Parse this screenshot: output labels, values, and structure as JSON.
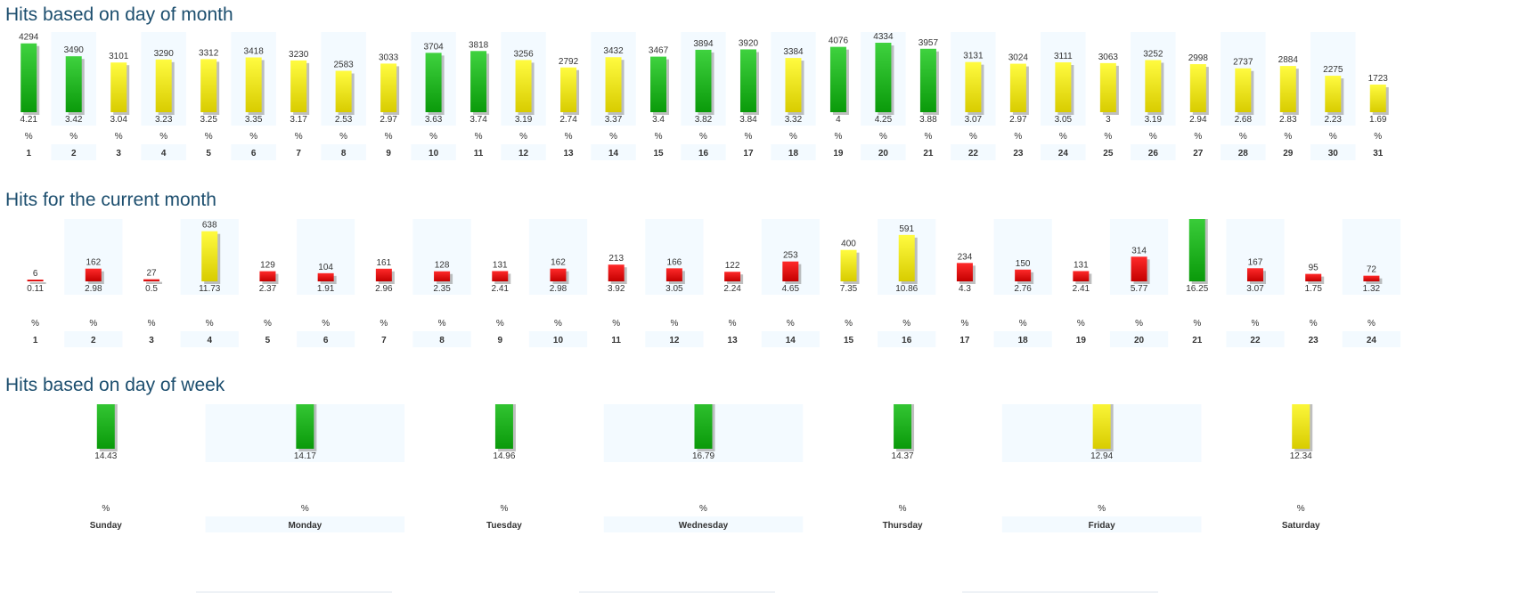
{
  "colors": {
    "green_top": "#3fd23f",
    "green_bottom": "#0a9a0a",
    "yellow_top": "#fffb40",
    "yellow_bottom": "#d8cc00",
    "red_top": "#ff2a2a",
    "red_bottom": "#c40000",
    "band": "#f3faff",
    "title": "#1c4e6e"
  },
  "chart_data": [
    {
      "type": "bar",
      "title": "Hits based on day of month",
      "categories": [
        "1",
        "2",
        "3",
        "4",
        "5",
        "6",
        "7",
        "8",
        "9",
        "10",
        "11",
        "12",
        "13",
        "14",
        "15",
        "16",
        "17",
        "18",
        "19",
        "20",
        "21",
        "22",
        "23",
        "24",
        "25",
        "26",
        "27",
        "28",
        "29",
        "30",
        "31"
      ],
      "values": [
        4294,
        3490,
        3101,
        3290,
        3312,
        3418,
        3230,
        2583,
        3033,
        3704,
        3818,
        3256,
        2792,
        3432,
        3467,
        3894,
        3920,
        3384,
        4076,
        4334,
        3957,
        3131,
        3024,
        3111,
        3063,
        3252,
        2998,
        2737,
        2884,
        2275,
        1723
      ],
      "percent_labels": [
        "4.21",
        "3.42",
        "3.04",
        "3.23",
        "3.25",
        "3.35",
        "3.17",
        "2.53",
        "2.97",
        "3.63",
        "3.74",
        "3.19",
        "2.74",
        "3.37",
        "3.4",
        "3.82",
        "3.84",
        "3.32",
        "4",
        "4.25",
        "3.88",
        "3.07",
        "2.97",
        "3.05",
        "3",
        "3.19",
        "2.94",
        "2.68",
        "2.83",
        "2.23",
        "1.69"
      ],
      "colors": [
        "green",
        "green",
        "yellow",
        "yellow",
        "yellow",
        "yellow",
        "yellow",
        "yellow",
        "yellow",
        "green",
        "green",
        "yellow",
        "yellow",
        "yellow",
        "green",
        "green",
        "green",
        "yellow",
        "green",
        "green",
        "green",
        "yellow",
        "yellow",
        "yellow",
        "yellow",
        "yellow",
        "yellow",
        "yellow",
        "yellow",
        "yellow",
        "yellow"
      ],
      "unit": "%"
    },
    {
      "type": "bar",
      "title": "Hits for the current month",
      "categories": [
        "1",
        "2",
        "3",
        "4",
        "5",
        "6",
        "7",
        "8",
        "9",
        "10",
        "11",
        "12",
        "13",
        "14",
        "15",
        "16",
        "17",
        "18",
        "19",
        "20",
        "21",
        "22",
        "23",
        "24"
      ],
      "values": [
        6,
        162,
        27,
        638,
        129,
        104,
        161,
        128,
        131,
        162,
        213,
        166,
        122,
        253,
        400,
        591,
        234,
        150,
        131,
        314,
        884,
        167,
        95,
        72
      ],
      "percent_labels": [
        "0.11",
        "2.98",
        "0.5",
        "11.73",
        "2.37",
        "1.91",
        "2.96",
        "2.35",
        "2.41",
        "2.98",
        "3.92",
        "3.05",
        "2.24",
        "4.65",
        "7.35",
        "10.86",
        "4.3",
        "2.76",
        "2.41",
        "5.77",
        "16.25",
        "3.07",
        "1.75",
        "1.32"
      ],
      "colors": [
        "red",
        "red",
        "red",
        "yellow",
        "red",
        "red",
        "red",
        "red",
        "red",
        "red",
        "red",
        "red",
        "red",
        "red",
        "yellow",
        "yellow",
        "red",
        "red",
        "red",
        "red",
        "green",
        "red",
        "red",
        "red"
      ],
      "unit": "%"
    },
    {
      "type": "bar",
      "title": "Hits based on day of week",
      "categories": [
        "Sunday",
        "Monday",
        "Tuesday",
        "Wednesday",
        "Thursday",
        "Friday",
        "Saturday"
      ],
      "values": [
        14718,
        14448,
        15252,
        17121,
        14656,
        13201,
        12587
      ],
      "percent_labels": [
        "14.43",
        "14.17",
        "14.96",
        "16.79",
        "14.37",
        "12.94",
        "12.34"
      ],
      "colors": [
        "green",
        "green",
        "green",
        "green",
        "green",
        "yellow",
        "yellow"
      ],
      "unit": "%"
    }
  ]
}
